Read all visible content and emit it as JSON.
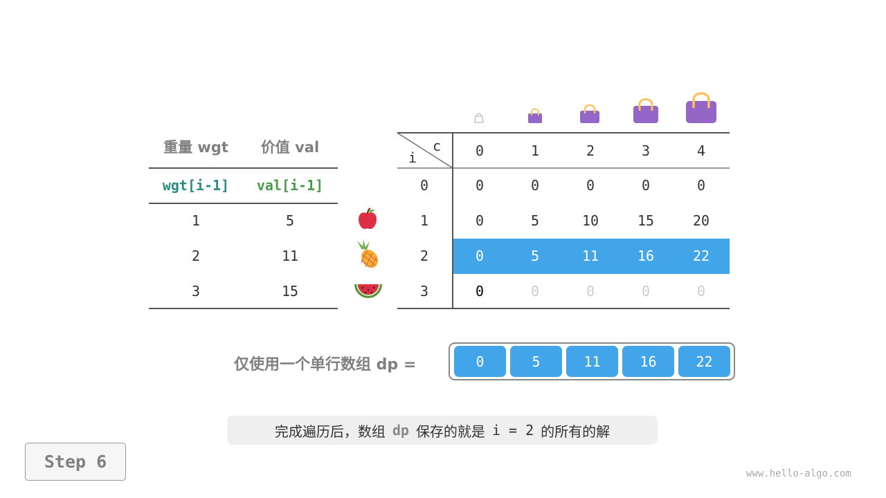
{
  "items_table": {
    "headers": [
      "重量 wgt",
      "价值 val"
    ],
    "subheaders": [
      "wgt[i-1]",
      "val[i-1]"
    ],
    "rows": [
      {
        "wgt": "1",
        "val": "5",
        "icon": "apple-icon"
      },
      {
        "wgt": "2",
        "val": "11",
        "icon": "pineapple-icon"
      },
      {
        "wgt": "3",
        "val": "15",
        "icon": "watermelon-icon"
      }
    ]
  },
  "dp_table": {
    "row_label": "i",
    "col_label": "c",
    "columns": [
      "0",
      "1",
      "2",
      "3",
      "4"
    ],
    "column_icons": [
      "bag-icon",
      "bag-icon",
      "bag-icon",
      "bag-icon",
      "bag-icon"
    ],
    "rows": [
      {
        "i": "0",
        "values": [
          "0",
          "0",
          "0",
          "0",
          "0"
        ]
      },
      {
        "i": "1",
        "values": [
          "0",
          "5",
          "10",
          "15",
          "20"
        ]
      },
      {
        "i": "2",
        "values": [
          "0",
          "5",
          "11",
          "16",
          "22"
        ]
      },
      {
        "i": "3",
        "values": [
          "0",
          "0",
          "0",
          "0",
          "0"
        ]
      }
    ],
    "highlight_row": 2,
    "highlight_color": "#42a5ea"
  },
  "dp_array": {
    "label": "仅使用一个单行数组 dp =",
    "values": [
      "0",
      "5",
      "11",
      "16",
      "22"
    ]
  },
  "caption": {
    "before": "完成遍历后，数组",
    "code": "dp",
    "middle": "保存的就是",
    "expr": "i = 2",
    "after": "的所有的解"
  },
  "step_label": "Step 6",
  "watermark": "www.hello-algo.com"
}
